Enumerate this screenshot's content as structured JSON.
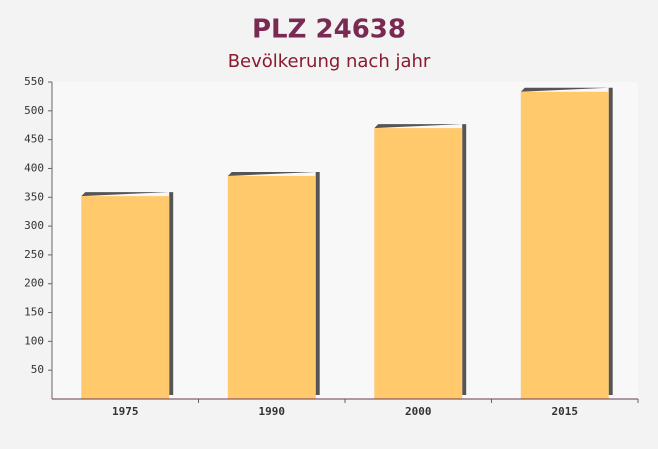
{
  "chart_data": {
    "type": "bar",
    "title": "PLZ 24638",
    "subtitle": "Bevölkerung nach jahr",
    "categories": [
      "1975",
      "1990",
      "2000",
      "2015"
    ],
    "values": [
      352,
      387,
      470,
      533
    ],
    "color": "#ffc35c",
    "ylim": [
      0,
      550
    ],
    "yticks": [
      50,
      100,
      150,
      200,
      250,
      300,
      350,
      400,
      450,
      500,
      550
    ],
    "grid": false
  }
}
